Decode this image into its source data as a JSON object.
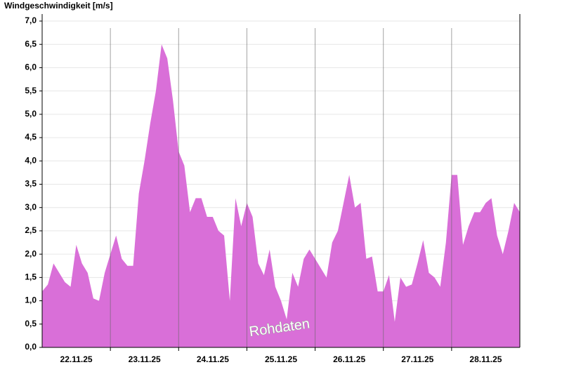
{
  "chart_data": {
    "type": "area",
    "title": "Windgeschwindigkeit [m/s]",
    "annotation": "Rohdaten",
    "color": "#d96fd8",
    "grid": true,
    "x": [
      0,
      2,
      4,
      6,
      8,
      10,
      12,
      14,
      16,
      18,
      20,
      22,
      24,
      26,
      28,
      30,
      32,
      34,
      36,
      38,
      40,
      42,
      44,
      46,
      48,
      50,
      52,
      54,
      56,
      58,
      60,
      62,
      64,
      66,
      68,
      70,
      72,
      74,
      76,
      78,
      80,
      82,
      84,
      86,
      88,
      90,
      92,
      94,
      96,
      98,
      100,
      102,
      104,
      106,
      108,
      110,
      112,
      114,
      116,
      118,
      120,
      122,
      124,
      126,
      128,
      130,
      132,
      134,
      136,
      138,
      140,
      142,
      144,
      146,
      148,
      150,
      152,
      154,
      156,
      158,
      160,
      162,
      164,
      166,
      168
    ],
    "values": [
      1.2,
      1.35,
      1.8,
      1.6,
      1.4,
      1.3,
      2.2,
      1.8,
      1.6,
      1.05,
      1.0,
      1.6,
      2.0,
      2.4,
      1.9,
      1.75,
      1.75,
      3.3,
      4.0,
      4.8,
      5.5,
      6.5,
      6.2,
      5.3,
      4.2,
      3.9,
      2.9,
      3.2,
      3.2,
      2.8,
      2.8,
      2.5,
      2.4,
      1.0,
      3.2,
      2.6,
      3.1,
      2.8,
      1.8,
      1.55,
      2.1,
      1.3,
      1.0,
      0.6,
      1.6,
      1.3,
      1.9,
      2.1,
      1.9,
      1.7,
      1.5,
      2.25,
      2.5,
      3.1,
      3.7,
      3.0,
      3.1,
      1.9,
      1.95,
      1.2,
      1.2,
      1.55,
      0.55,
      1.5,
      1.3,
      1.35,
      1.8,
      2.3,
      1.6,
      1.5,
      1.3,
      2.25,
      3.7,
      3.7,
      2.2,
      2.6,
      2.9,
      2.9,
      3.1,
      3.2,
      2.4,
      2.0,
      2.5,
      3.1,
      2.9
    ],
    "xlim": [
      0,
      168
    ],
    "xticks": [
      {
        "value": 12,
        "label": "22.11.25"
      },
      {
        "value": 36,
        "label": "23.11.25"
      },
      {
        "value": 60,
        "label": "24.11.25"
      },
      {
        "value": 84,
        "label": "25.11.25"
      },
      {
        "value": 108,
        "label": "26.11.25"
      },
      {
        "value": 132,
        "label": "27.11.25"
      },
      {
        "value": 156,
        "label": "28.11.25"
      }
    ],
    "day_lines": [
      24,
      48,
      72,
      96,
      120,
      144
    ],
    "ylim": [
      0,
      7
    ],
    "yticks": [
      {
        "value": 0,
        "label": "0,0"
      },
      {
        "value": 0.5,
        "label": "0,5"
      },
      {
        "value": 1,
        "label": "1,0"
      },
      {
        "value": 1.5,
        "label": "1,5"
      },
      {
        "value": 2,
        "label": "2,0"
      },
      {
        "value": 2.5,
        "label": "2,5"
      },
      {
        "value": 3,
        "label": "3,0"
      },
      {
        "value": 3.5,
        "label": "3,5"
      },
      {
        "value": 4,
        "label": "4,0"
      },
      {
        "value": 4.5,
        "label": "4,5"
      },
      {
        "value": 5,
        "label": "5,0"
      },
      {
        "value": 5.5,
        "label": "5,5"
      },
      {
        "value": 6,
        "label": "6,0"
      },
      {
        "value": 6.5,
        "label": "6,5"
      },
      {
        "value": 7,
        "label": "7,0"
      }
    ]
  }
}
